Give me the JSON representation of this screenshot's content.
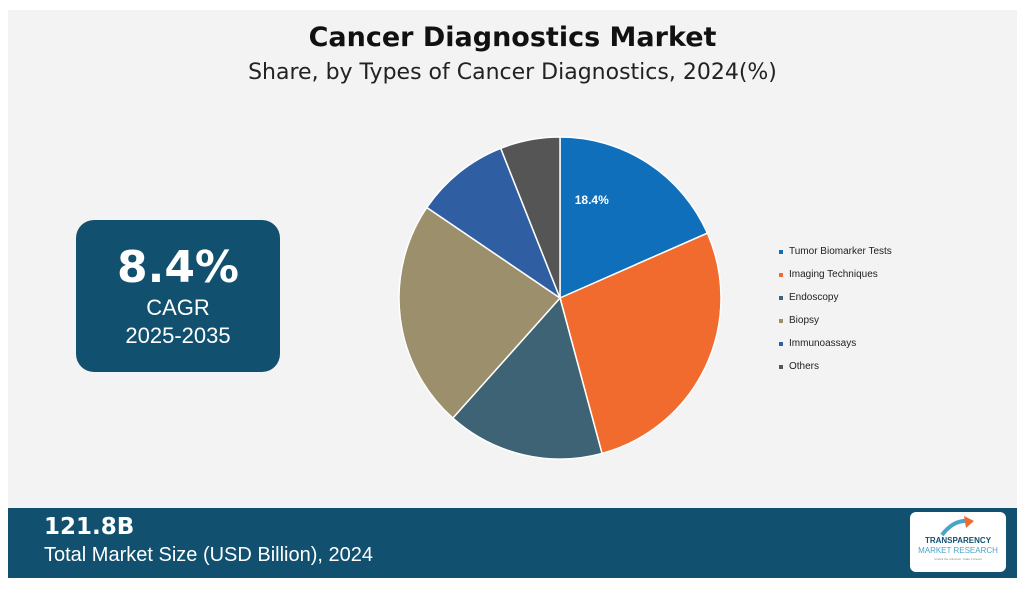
{
  "header": {
    "title": "Cancer Diagnostics Market",
    "subtitle": "Share, by Types of Cancer Diagnostics, 2024(%)"
  },
  "cagr": {
    "value": "8.4%",
    "label": "CAGR",
    "years": "2025-2035"
  },
  "chart_data": {
    "type": "pie",
    "title": "Share, by Types of Cancer Diagnostics, 2024(%)",
    "categories": [
      "Tumor Biomarker Tests",
      "Imaging Techniques",
      "Endoscopy",
      "Biopsy",
      "Immunoassays",
      "Others"
    ],
    "values": [
      18.4,
      27.4,
      15.8,
      22.9,
      9.5,
      6.0
    ],
    "colors": [
      "#0f6fbb",
      "#f26b2e",
      "#3d6374",
      "#9c8f6b",
      "#2f5fa2",
      "#555555"
    ],
    "data_labels": [
      "18.4%",
      "",
      "",
      "",
      "",
      ""
    ],
    "legend_position": "right"
  },
  "footer": {
    "market_value": "121.8B",
    "market_label": "Total Market Size (USD Billion), 2024"
  },
  "logo": {
    "line1": "TRANSPARENCY",
    "line2": "MARKET RESEARCH",
    "line3": "Unlock the unknown, make it known",
    "accent": "#f26b2e"
  }
}
